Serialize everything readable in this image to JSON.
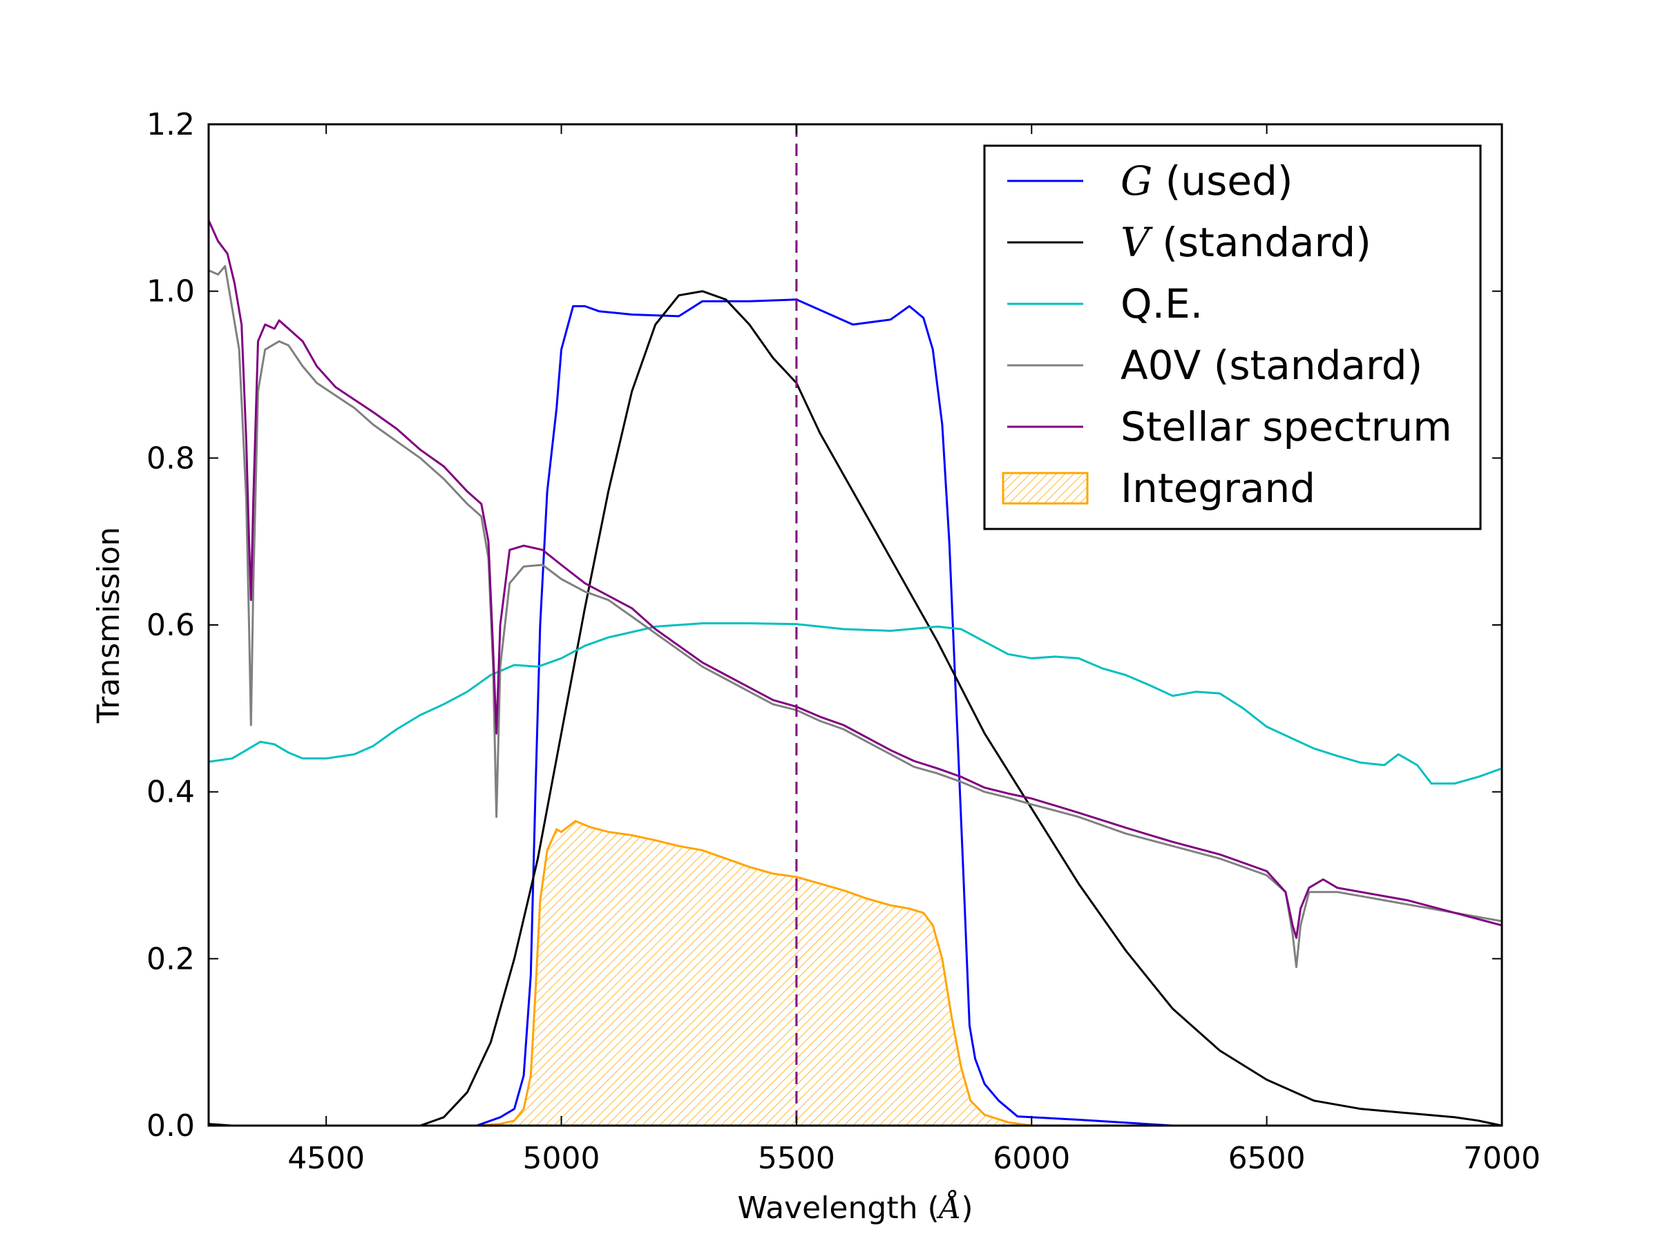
{
  "chart_data": {
    "type": "line",
    "xlabel_prefix": "Wavelength (",
    "xlabel_unit": "Å",
    "xlabel_suffix": ")",
    "ylabel": "Transmission",
    "xlim": [
      4250,
      7000
    ],
    "ylim": [
      0,
      1.2
    ],
    "xticks": [
      4500,
      5000,
      5500,
      6000,
      6500,
      7000
    ],
    "xtick_labels": [
      "4500",
      "5000",
      "5500",
      "6000",
      "6500",
      "7000"
    ],
    "yticks": [
      0,
      0.2,
      0.4,
      0.6,
      0.8,
      1.0,
      1.2
    ],
    "ytick_labels": [
      "0.0",
      "0.2",
      "0.4",
      "0.6",
      "0.8",
      "1.0",
      "1.2"
    ],
    "grid": false,
    "legend_position": "top-right",
    "vline": {
      "x": 5500,
      "style": "dashed",
      "color": "#800080"
    },
    "series": [
      {
        "id": "G",
        "name_math": "G",
        "name": " (used)",
        "color": "#0000ff",
        "kind": "line",
        "points": [
          [
            4820,
            0
          ],
          [
            4870,
            0.01
          ],
          [
            4900,
            0.02
          ],
          [
            4920,
            0.06
          ],
          [
            4935,
            0.18
          ],
          [
            4945,
            0.4
          ],
          [
            4955,
            0.6
          ],
          [
            4970,
            0.76
          ],
          [
            4990,
            0.86
          ],
          [
            5000,
            0.93
          ],
          [
            5025,
            0.982
          ],
          [
            5050,
            0.982
          ],
          [
            5080,
            0.976
          ],
          [
            5150,
            0.972
          ],
          [
            5250,
            0.97
          ],
          [
            5300,
            0.988
          ],
          [
            5400,
            0.988
          ],
          [
            5500,
            0.99
          ],
          [
            5620,
            0.96
          ],
          [
            5700,
            0.966
          ],
          [
            5740,
            0.982
          ],
          [
            5770,
            0.968
          ],
          [
            5790,
            0.93
          ],
          [
            5810,
            0.84
          ],
          [
            5825,
            0.7
          ],
          [
            5840,
            0.5
          ],
          [
            5855,
            0.3
          ],
          [
            5868,
            0.12
          ],
          [
            5880,
            0.08
          ],
          [
            5900,
            0.05
          ],
          [
            5930,
            0.03
          ],
          [
            5970,
            0.011
          ],
          [
            6100,
            0.007
          ],
          [
            6300,
            0
          ],
          [
            7000,
            0
          ]
        ]
      },
      {
        "id": "V",
        "name_math": "V",
        "name": " (standard)",
        "color": "#000000",
        "kind": "line",
        "points": [
          [
            4250,
            0.002
          ],
          [
            4300,
            0
          ],
          [
            4700,
            0
          ],
          [
            4750,
            0.01
          ],
          [
            4800,
            0.04
          ],
          [
            4850,
            0.1
          ],
          [
            4900,
            0.2
          ],
          [
            4950,
            0.32
          ],
          [
            5000,
            0.47
          ],
          [
            5050,
            0.62
          ],
          [
            5100,
            0.76
          ],
          [
            5150,
            0.88
          ],
          [
            5200,
            0.96
          ],
          [
            5250,
            0.995
          ],
          [
            5300,
            1.0
          ],
          [
            5350,
            0.99
          ],
          [
            5400,
            0.96
          ],
          [
            5450,
            0.92
          ],
          [
            5500,
            0.89
          ],
          [
            5550,
            0.83
          ],
          [
            5600,
            0.78
          ],
          [
            5700,
            0.68
          ],
          [
            5800,
            0.58
          ],
          [
            5900,
            0.47
          ],
          [
            6000,
            0.38
          ],
          [
            6100,
            0.29
          ],
          [
            6200,
            0.21
          ],
          [
            6300,
            0.14
          ],
          [
            6400,
            0.09
          ],
          [
            6500,
            0.055
          ],
          [
            6600,
            0.03
          ],
          [
            6700,
            0.02
          ],
          [
            6800,
            0.015
          ],
          [
            6900,
            0.01
          ],
          [
            6950,
            0.006
          ],
          [
            7000,
            0
          ]
        ]
      },
      {
        "id": "QE",
        "name_math": "",
        "name": "Q.E.",
        "color": "#00bfbf",
        "kind": "line",
        "points": [
          [
            4250,
            0.436
          ],
          [
            4300,
            0.44
          ],
          [
            4330,
            0.45
          ],
          [
            4360,
            0.46
          ],
          [
            4390,
            0.457
          ],
          [
            4420,
            0.447
          ],
          [
            4450,
            0.44
          ],
          [
            4500,
            0.44
          ],
          [
            4560,
            0.445
          ],
          [
            4600,
            0.455
          ],
          [
            4650,
            0.475
          ],
          [
            4700,
            0.492
          ],
          [
            4750,
            0.505
          ],
          [
            4800,
            0.52
          ],
          [
            4850,
            0.54
          ],
          [
            4900,
            0.552
          ],
          [
            4950,
            0.55
          ],
          [
            5000,
            0.56
          ],
          [
            5050,
            0.575
          ],
          [
            5100,
            0.585
          ],
          [
            5200,
            0.598
          ],
          [
            5300,
            0.602
          ],
          [
            5400,
            0.602
          ],
          [
            5500,
            0.601
          ],
          [
            5600,
            0.595
          ],
          [
            5700,
            0.593
          ],
          [
            5800,
            0.598
          ],
          [
            5850,
            0.595
          ],
          [
            5900,
            0.58
          ],
          [
            5950,
            0.565
          ],
          [
            6000,
            0.56
          ],
          [
            6050,
            0.562
          ],
          [
            6100,
            0.56
          ],
          [
            6150,
            0.548
          ],
          [
            6200,
            0.54
          ],
          [
            6250,
            0.528
          ],
          [
            6300,
            0.515
          ],
          [
            6350,
            0.52
          ],
          [
            6400,
            0.518
          ],
          [
            6450,
            0.5
          ],
          [
            6500,
            0.478
          ],
          [
            6550,
            0.465
          ],
          [
            6600,
            0.452
          ],
          [
            6650,
            0.443
          ],
          [
            6700,
            0.435
          ],
          [
            6750,
            0.432
          ],
          [
            6780,
            0.445
          ],
          [
            6820,
            0.432
          ],
          [
            6850,
            0.41
          ],
          [
            6900,
            0.41
          ],
          [
            6950,
            0.418
          ],
          [
            7000,
            0.428
          ]
        ]
      },
      {
        "id": "A0V",
        "name_math": "",
        "name": "A0V (standard)",
        "color": "#808080",
        "kind": "line",
        "points": [
          [
            4250,
            1.025
          ],
          [
            4270,
            1.02
          ],
          [
            4285,
            1.03
          ],
          [
            4300,
            0.98
          ],
          [
            4315,
            0.93
          ],
          [
            4330,
            0.75
          ],
          [
            4336,
            0.6
          ],
          [
            4340,
            0.48
          ],
          [
            4345,
            0.65
          ],
          [
            4355,
            0.88
          ],
          [
            4370,
            0.93
          ],
          [
            4400,
            0.94
          ],
          [
            4420,
            0.935
          ],
          [
            4450,
            0.91
          ],
          [
            4480,
            0.89
          ],
          [
            4520,
            0.875
          ],
          [
            4560,
            0.86
          ],
          [
            4600,
            0.84
          ],
          [
            4650,
            0.82
          ],
          [
            4700,
            0.8
          ],
          [
            4750,
            0.775
          ],
          [
            4800,
            0.745
          ],
          [
            4830,
            0.73
          ],
          [
            4845,
            0.68
          ],
          [
            4855,
            0.55
          ],
          [
            4862,
            0.37
          ],
          [
            4870,
            0.55
          ],
          [
            4890,
            0.65
          ],
          [
            4920,
            0.67
          ],
          [
            4960,
            0.672
          ],
          [
            5000,
            0.655
          ],
          [
            5050,
            0.64
          ],
          [
            5100,
            0.63
          ],
          [
            5150,
            0.61
          ],
          [
            5200,
            0.59
          ],
          [
            5250,
            0.57
          ],
          [
            5300,
            0.55
          ],
          [
            5350,
            0.535
          ],
          [
            5400,
            0.52
          ],
          [
            5450,
            0.505
          ],
          [
            5500,
            0.498
          ],
          [
            5550,
            0.485
          ],
          [
            5600,
            0.475
          ],
          [
            5650,
            0.46
          ],
          [
            5700,
            0.445
          ],
          [
            5750,
            0.43
          ],
          [
            5800,
            0.422
          ],
          [
            5850,
            0.412
          ],
          [
            5900,
            0.4
          ],
          [
            5950,
            0.393
          ],
          [
            6000,
            0.385
          ],
          [
            6100,
            0.37
          ],
          [
            6200,
            0.35
          ],
          [
            6300,
            0.335
          ],
          [
            6400,
            0.32
          ],
          [
            6500,
            0.3
          ],
          [
            6540,
            0.28
          ],
          [
            6555,
            0.23
          ],
          [
            6563,
            0.19
          ],
          [
            6572,
            0.24
          ],
          [
            6590,
            0.28
          ],
          [
            6650,
            0.28
          ],
          [
            6700,
            0.275
          ],
          [
            6800,
            0.265
          ],
          [
            6900,
            0.255
          ],
          [
            7000,
            0.245
          ]
        ]
      },
      {
        "id": "stellar",
        "name_math": "",
        "name": "Stellar spectrum",
        "color": "#800080",
        "kind": "line",
        "points": [
          [
            4250,
            1.085
          ],
          [
            4270,
            1.06
          ],
          [
            4290,
            1.045
          ],
          [
            4305,
            1.01
          ],
          [
            4320,
            0.96
          ],
          [
            4330,
            0.82
          ],
          [
            4336,
            0.7
          ],
          [
            4340,
            0.63
          ],
          [
            4345,
            0.75
          ],
          [
            4355,
            0.94
          ],
          [
            4370,
            0.96
          ],
          [
            4390,
            0.955
          ],
          [
            4400,
            0.965
          ],
          [
            4420,
            0.955
          ],
          [
            4450,
            0.94
          ],
          [
            4480,
            0.91
          ],
          [
            4520,
            0.885
          ],
          [
            4560,
            0.87
          ],
          [
            4600,
            0.855
          ],
          [
            4650,
            0.835
          ],
          [
            4700,
            0.81
          ],
          [
            4750,
            0.79
          ],
          [
            4800,
            0.76
          ],
          [
            4830,
            0.745
          ],
          [
            4845,
            0.7
          ],
          [
            4855,
            0.57
          ],
          [
            4862,
            0.47
          ],
          [
            4870,
            0.6
          ],
          [
            4890,
            0.69
          ],
          [
            4920,
            0.695
          ],
          [
            4960,
            0.69
          ],
          [
            5000,
            0.672
          ],
          [
            5050,
            0.65
          ],
          [
            5100,
            0.635
          ],
          [
            5150,
            0.62
          ],
          [
            5200,
            0.595
          ],
          [
            5250,
            0.575
          ],
          [
            5300,
            0.555
          ],
          [
            5350,
            0.54
          ],
          [
            5400,
            0.525
          ],
          [
            5450,
            0.51
          ],
          [
            5500,
            0.502
          ],
          [
            5550,
            0.49
          ],
          [
            5600,
            0.48
          ],
          [
            5650,
            0.465
          ],
          [
            5700,
            0.45
          ],
          [
            5750,
            0.437
          ],
          [
            5800,
            0.428
          ],
          [
            5850,
            0.418
          ],
          [
            5900,
            0.405
          ],
          [
            5950,
            0.398
          ],
          [
            6000,
            0.392
          ],
          [
            6100,
            0.375
          ],
          [
            6200,
            0.357
          ],
          [
            6300,
            0.34
          ],
          [
            6400,
            0.325
          ],
          [
            6500,
            0.305
          ],
          [
            6540,
            0.28
          ],
          [
            6555,
            0.24
          ],
          [
            6563,
            0.225
          ],
          [
            6572,
            0.26
          ],
          [
            6590,
            0.285
          ],
          [
            6620,
            0.295
          ],
          [
            6650,
            0.285
          ],
          [
            6700,
            0.28
          ],
          [
            6800,
            0.27
          ],
          [
            6900,
            0.255
          ],
          [
            7000,
            0.24
          ]
        ]
      },
      {
        "id": "integrand",
        "name_math": "",
        "name": "Integrand",
        "color": "#ffa500",
        "kind": "area",
        "points": [
          [
            4820,
            0
          ],
          [
            4870,
            0.002
          ],
          [
            4900,
            0.006
          ],
          [
            4920,
            0.02
          ],
          [
            4935,
            0.06
          ],
          [
            4945,
            0.16
          ],
          [
            4955,
            0.27
          ],
          [
            4970,
            0.33
          ],
          [
            4990,
            0.355
          ],
          [
            5000,
            0.352
          ],
          [
            5030,
            0.365
          ],
          [
            5060,
            0.358
          ],
          [
            5100,
            0.352
          ],
          [
            5150,
            0.348
          ],
          [
            5200,
            0.342
          ],
          [
            5250,
            0.335
          ],
          [
            5300,
            0.33
          ],
          [
            5350,
            0.32
          ],
          [
            5400,
            0.31
          ],
          [
            5450,
            0.302
          ],
          [
            5500,
            0.298
          ],
          [
            5550,
            0.29
          ],
          [
            5600,
            0.282
          ],
          [
            5650,
            0.272
          ],
          [
            5700,
            0.264
          ],
          [
            5740,
            0.26
          ],
          [
            5770,
            0.255
          ],
          [
            5790,
            0.24
          ],
          [
            5810,
            0.2
          ],
          [
            5830,
            0.13
          ],
          [
            5850,
            0.07
          ],
          [
            5870,
            0.03
          ],
          [
            5900,
            0.013
          ],
          [
            5950,
            0.004
          ],
          [
            6000,
            0
          ]
        ]
      }
    ]
  }
}
